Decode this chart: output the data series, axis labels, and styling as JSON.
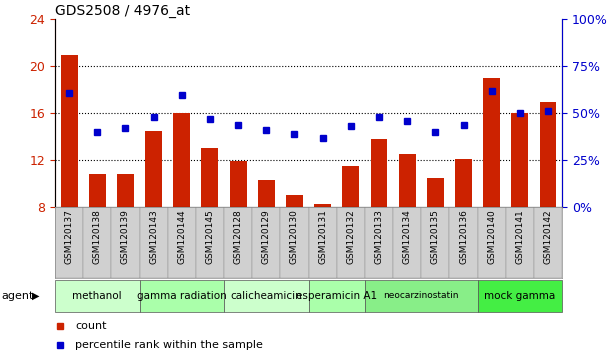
{
  "title": "GDS2508 / 4976_at",
  "samples": [
    "GSM120137",
    "GSM120138",
    "GSM120139",
    "GSM120143",
    "GSM120144",
    "GSM120145",
    "GSM120128",
    "GSM120129",
    "GSM120130",
    "GSM120131",
    "GSM120132",
    "GSM120133",
    "GSM120134",
    "GSM120135",
    "GSM120136",
    "GSM120140",
    "GSM120141",
    "GSM120142"
  ],
  "counts": [
    21.0,
    10.8,
    10.8,
    14.5,
    16.0,
    13.0,
    11.9,
    10.3,
    9.0,
    8.3,
    11.5,
    13.8,
    12.5,
    10.5,
    12.1,
    19.0,
    16.0,
    17.0
  ],
  "percentiles": [
    61,
    40,
    42,
    48,
    60,
    47,
    44,
    41,
    39,
    37,
    43,
    48,
    46,
    40,
    44,
    62,
    50,
    51
  ],
  "ylim_left": [
    8,
    24
  ],
  "ylim_right": [
    0,
    100
  ],
  "yticks_left": [
    8,
    12,
    16,
    20,
    24
  ],
  "yticks_right": [
    0,
    25,
    50,
    75,
    100
  ],
  "ytick_labels_right": [
    "0%",
    "25%",
    "50%",
    "75%",
    "100%"
  ],
  "bar_color": "#cc2200",
  "dot_color": "#0000cc",
  "gridline_ticks": [
    12,
    16,
    20
  ],
  "left_tick_color": "#cc2200",
  "right_tick_color": "#0000cc",
  "tick_bg_color": "#d0d0d0",
  "title_color": "#000000",
  "groups": [
    {
      "label": "methanol",
      "start": 0,
      "end": 2,
      "color": "#ccffcc"
    },
    {
      "label": "gamma radiation",
      "start": 3,
      "end": 5,
      "color": "#aaffaa"
    },
    {
      "label": "calicheamicin",
      "start": 6,
      "end": 8,
      "color": "#ccffcc"
    },
    {
      "label": "esperamicin A1",
      "start": 9,
      "end": 10,
      "color": "#aaffaa"
    },
    {
      "label": "neocarzinostatin",
      "start": 11,
      "end": 14,
      "color": "#88ee88"
    },
    {
      "label": "mock gamma",
      "start": 15,
      "end": 17,
      "color": "#44ee44"
    }
  ],
  "legend_count_color": "#cc2200",
  "legend_pct_color": "#0000cc"
}
